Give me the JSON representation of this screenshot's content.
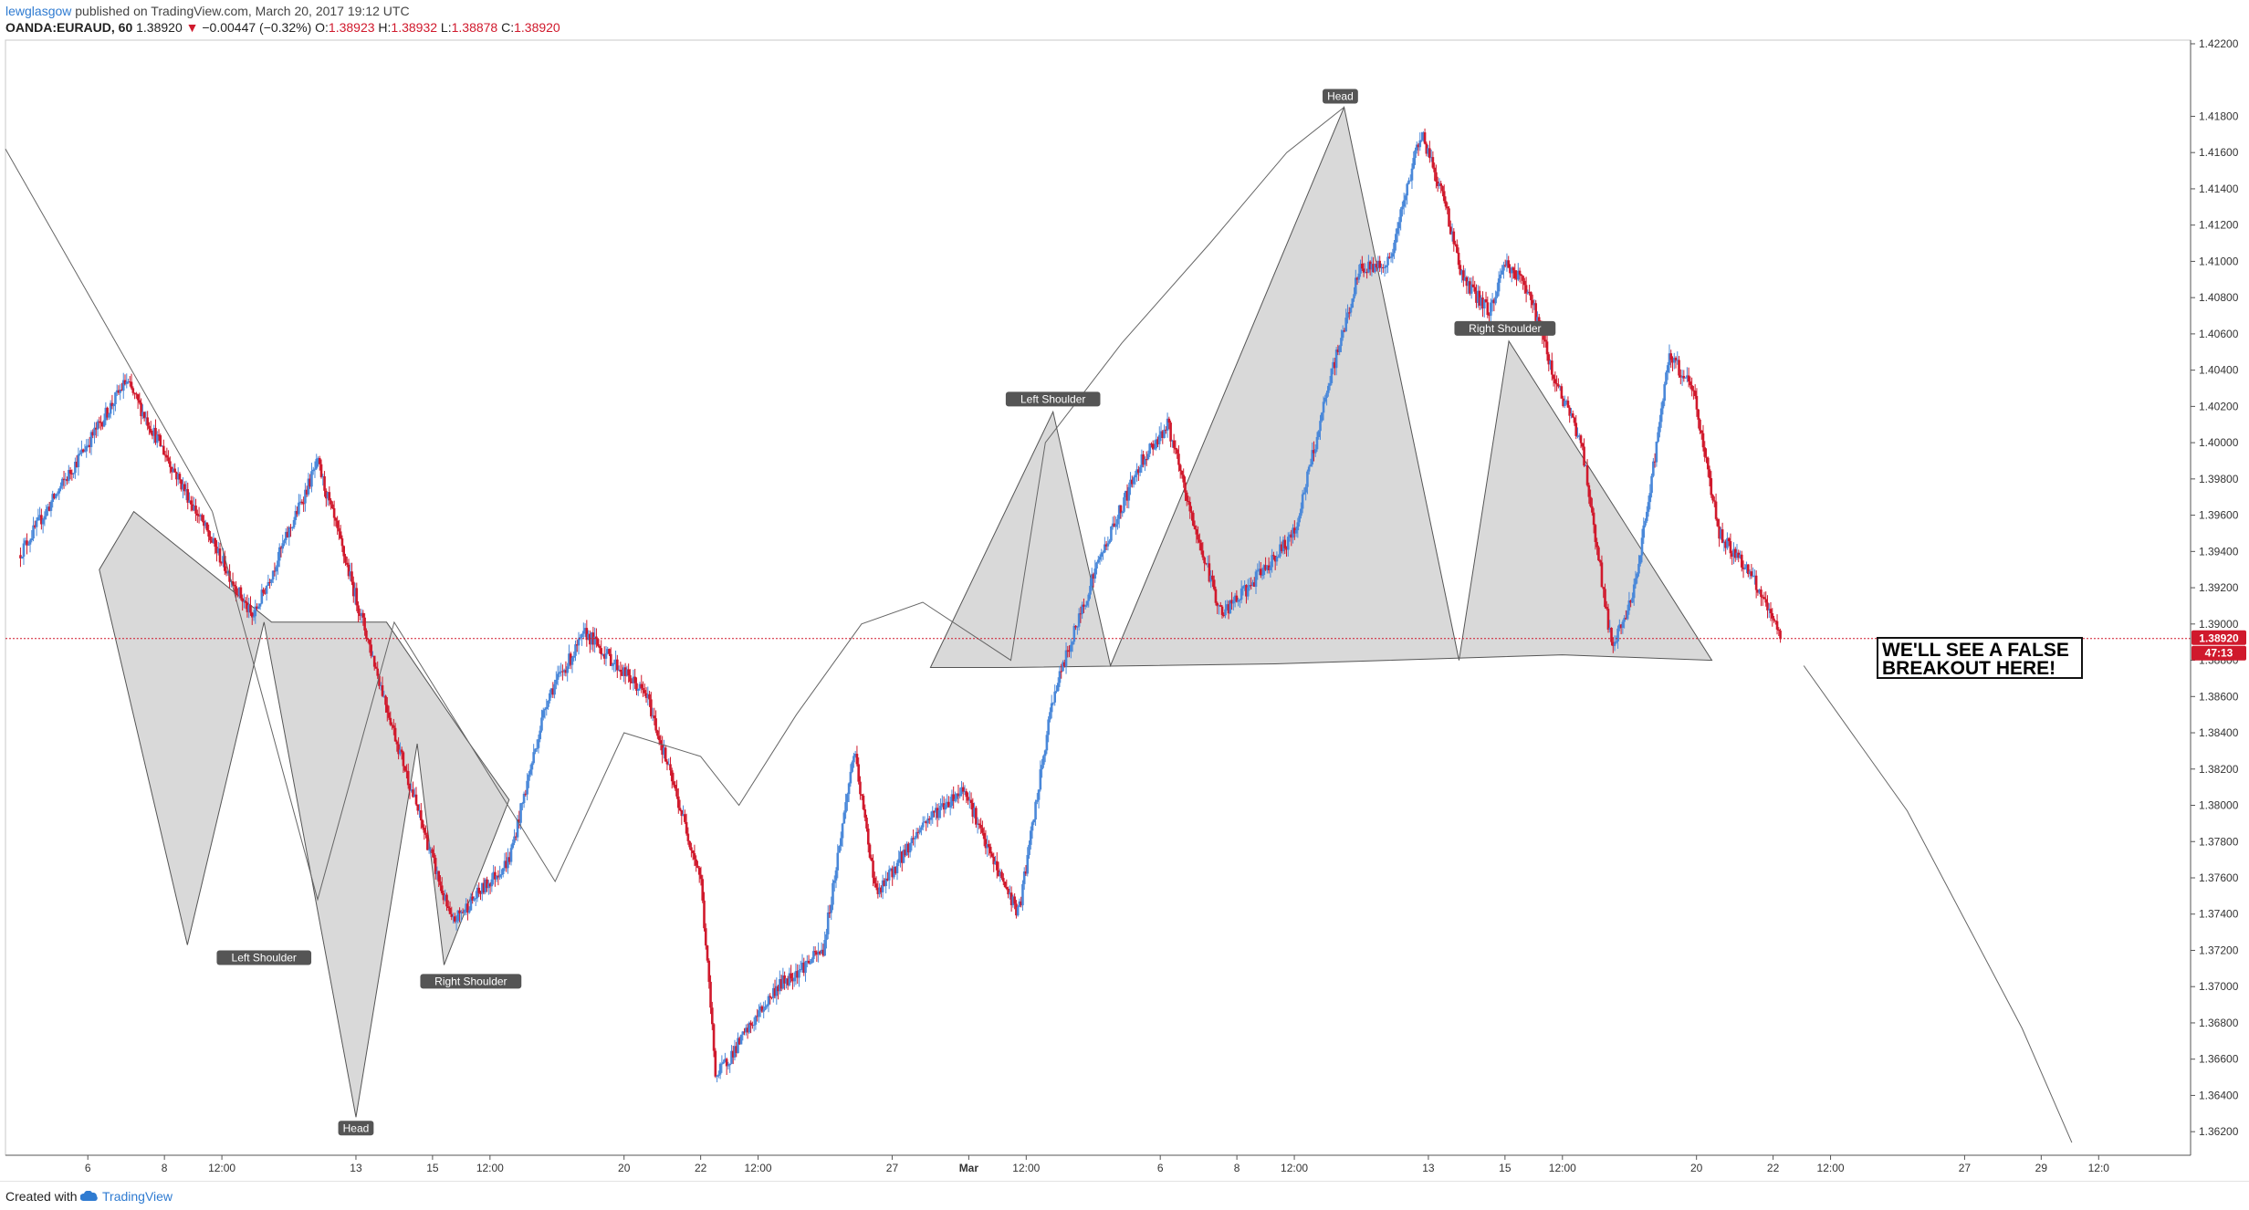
{
  "header": {
    "author": "lewglasgow",
    "published": " published on TradingView.com, March 20, 2017 19:12 UTC",
    "symbol": "OANDA:EURAUD, 60",
    "last": "1.38920",
    "change": "−0.00447 (−0.32%)",
    "open_label": "O:",
    "open": "1.38923",
    "high_label": "H:",
    "high": "1.38932",
    "low_label": "L:",
    "low": "1.38878",
    "close_label": "C:",
    "close": "1.38920"
  },
  "footer": {
    "created_with": "Created with",
    "brand": "TradingView"
  },
  "colors": {
    "up": "#4a88d9",
    "down": "#d0192c",
    "pattern_fill": "#d6d6d6",
    "label_bg": "#555555",
    "price_tag": "#d0192c",
    "price_line": "#d0192c"
  },
  "chart_data": {
    "type": "candlestick",
    "symbol": "OANDA:EURAUD",
    "interval": "60",
    "ylim": [
      1.3607,
      1.4222
    ],
    "y_ticks": [
      "1.42200",
      "1.41800",
      "1.41600",
      "1.41400",
      "1.41200",
      "1.41000",
      "1.40800",
      "1.40600",
      "1.40400",
      "1.40200",
      "1.40000",
      "1.39800",
      "1.39600",
      "1.39400",
      "1.39200",
      "1.39000",
      "1.38800",
      "1.38600",
      "1.38400",
      "1.38200",
      "1.38000",
      "1.37800",
      "1.37600",
      "1.37400",
      "1.37200",
      "1.37000",
      "1.36800",
      "1.36600",
      "1.36400",
      "1.36200"
    ],
    "x_ticks": [
      "6",
      "8",
      "12:00",
      "13",
      "15",
      "12:00",
      "20",
      "22",
      "12:00",
      "27",
      "Mar",
      "12:00",
      "6",
      "8",
      "12:00",
      "13",
      "15",
      "12:00",
      "20",
      "22",
      "12:00",
      "27",
      "29",
      "12:0"
    ],
    "x_tick_values": [
      6,
      8,
      9.5,
      13,
      15,
      16.5,
      20,
      22,
      23.5,
      27,
      29,
      30.5,
      34,
      36,
      37.5,
      41,
      43,
      44.5,
      48,
      50,
      51.5,
      55,
      57,
      58.5
    ],
    "x_tick_bold": [
      "Mar"
    ],
    "last_price": "1.38920",
    "countdown": "47:13",
    "anchors": [
      [
        4.2,
        1.3938
      ],
      [
        7.0,
        1.4034
      ],
      [
        8.5,
        1.3975
      ],
      [
        10.3,
        1.3903
      ],
      [
        12.0,
        1.3989
      ],
      [
        14.0,
        1.384
      ],
      [
        15.5,
        1.3735
      ],
      [
        17.0,
        1.377
      ],
      [
        18.0,
        1.386
      ],
      [
        19.0,
        1.3895
      ],
      [
        20.6,
        1.386
      ],
      [
        22.0,
        1.376
      ],
      [
        22.4,
        1.365
      ],
      [
        24.0,
        1.37
      ],
      [
        25.2,
        1.372
      ],
      [
        26.0,
        1.383
      ],
      [
        26.6,
        1.375
      ],
      [
        27.8,
        1.379
      ],
      [
        28.9,
        1.381
      ],
      [
        29.4,
        1.378
      ],
      [
        30.3,
        1.374
      ],
      [
        31.2,
        1.386
      ],
      [
        32.3,
        1.393
      ],
      [
        33.5,
        1.399
      ],
      [
        34.2,
        1.401
      ],
      [
        34.8,
        1.396
      ],
      [
        35.6,
        1.3905
      ],
      [
        36.3,
        1.392
      ],
      [
        37.5,
        1.395
      ],
      [
        38.5,
        1.404
      ],
      [
        39.2,
        1.4095
      ],
      [
        40.0,
        1.41
      ],
      [
        40.8,
        1.4172
      ],
      [
        41.4,
        1.4135
      ],
      [
        41.9,
        1.409
      ],
      [
        42.6,
        1.4072
      ],
      [
        43.0,
        1.41
      ],
      [
        43.6,
        1.4085
      ],
      [
        44.3,
        1.4035
      ],
      [
        45.0,
        1.4
      ],
      [
        45.8,
        1.3885
      ],
      [
        46.4,
        1.392
      ],
      [
        47.3,
        1.4048
      ],
      [
        47.9,
        1.403
      ],
      [
        48.6,
        1.395
      ],
      [
        49.4,
        1.3928
      ],
      [
        50.2,
        1.3892
      ]
    ],
    "pattern_lines": [
      {
        "points": [
          [
            3.85,
            1.4162
          ],
          [
            9.25,
            1.3962
          ]
        ]
      },
      {
        "points": [
          [
            9.25,
            1.3962
          ],
          [
            12.0,
            1.3748
          ],
          [
            14.0,
            1.3901
          ],
          [
            18.2,
            1.3758
          ],
          [
            20.0,
            1.384
          ],
          [
            22.0,
            1.3827
          ],
          [
            23.0,
            1.38
          ],
          [
            24.5,
            1.385
          ],
          [
            26.2,
            1.39
          ],
          [
            27.8,
            1.3912
          ],
          [
            30.1,
            1.388
          ],
          [
            31.0,
            1.4
          ],
          [
            33.0,
            1.4055
          ],
          [
            35.3,
            1.411
          ],
          [
            37.3,
            1.416
          ],
          [
            38.8,
            1.4185
          ]
        ]
      },
      {
        "points": [
          [
            50.8,
            1.3877
          ],
          [
            53.5,
            1.3797
          ],
          [
            56.5,
            1.3677
          ],
          [
            57.8,
            1.3614
          ]
        ]
      }
    ],
    "patterns": [
      {
        "name": "inverse-head-and-shoulders",
        "points": [
          [
            6.3,
            1.393
          ],
          [
            8.6,
            1.3723
          ],
          [
            10.6,
            1.3901
          ],
          [
            13.0,
            1.3628
          ],
          [
            14.6,
            1.3834
          ],
          [
            15.3,
            1.3712
          ],
          [
            17.0,
            1.3803
          ],
          [
            15.9,
            1.3836
          ],
          [
            13.8,
            1.3901
          ],
          [
            10.8,
            1.3901
          ],
          [
            7.2,
            1.3962
          ]
        ]
      },
      {
        "name": "head-and-shoulders",
        "points": [
          [
            28.0,
            1.3876
          ],
          [
            31.2,
            1.4017
          ],
          [
            32.7,
            1.3877
          ],
          [
            38.8,
            1.4185
          ],
          [
            41.8,
            1.388
          ],
          [
            43.1,
            1.4056
          ],
          [
            48.4,
            1.388
          ],
          [
            44.5,
            1.3883
          ],
          [
            37.0,
            1.3878
          ],
          [
            30.0,
            1.3876
          ]
        ]
      }
    ],
    "neckline_value": 1.3877,
    "labels": [
      {
        "text": "Left Shoulder",
        "x": 10.6,
        "y": 1.3722,
        "anchor": "below"
      },
      {
        "text": "Head",
        "x": 13.0,
        "y": 1.3628,
        "anchor": "below"
      },
      {
        "text": "Right Shoulder",
        "x": 16.0,
        "y": 1.3709,
        "anchor": "below"
      },
      {
        "text": "Left Shoulder",
        "x": 31.2,
        "y": 1.4018,
        "anchor": "above"
      },
      {
        "text": "Head",
        "x": 38.7,
        "y": 1.4185,
        "anchor": "above"
      },
      {
        "text": "Right Shoulder",
        "x": 43.0,
        "y": 1.4057,
        "anchor": "above"
      }
    ],
    "annotation": {
      "line1": "WE'LL SEE A FALSE",
      "line2": "BREAKOUT HERE!"
    }
  }
}
